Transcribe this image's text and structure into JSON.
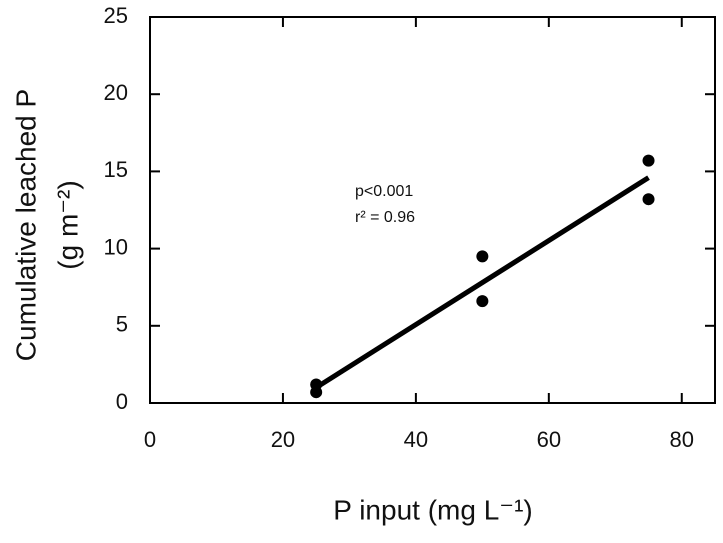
{
  "chart_data": {
    "type": "scatter",
    "x_label": "P input (mg L⁻¹)",
    "y_label": [
      "Cumulative leached P",
      "(g m⁻²)"
    ],
    "annotations": [
      "p<0.001",
      "r² = 0.96"
    ],
    "series": [
      {
        "color": "#000000",
        "x": [
          25,
          25,
          50,
          50,
          75,
          75
        ],
        "values": [
          1.2,
          0.7,
          9.5,
          6.6,
          15.7,
          13.2
        ]
      }
    ],
    "fit_line": {
      "x": [
        25,
        75
      ],
      "y": [
        1.0,
        14.6
      ],
      "color": "#000000"
    },
    "xlim": [
      0,
      85
    ],
    "xticks": [
      0,
      20,
      40,
      60,
      80
    ],
    "ylim": [
      0,
      25
    ],
    "yticks": [
      0,
      5,
      10,
      15,
      20,
      25
    ]
  }
}
